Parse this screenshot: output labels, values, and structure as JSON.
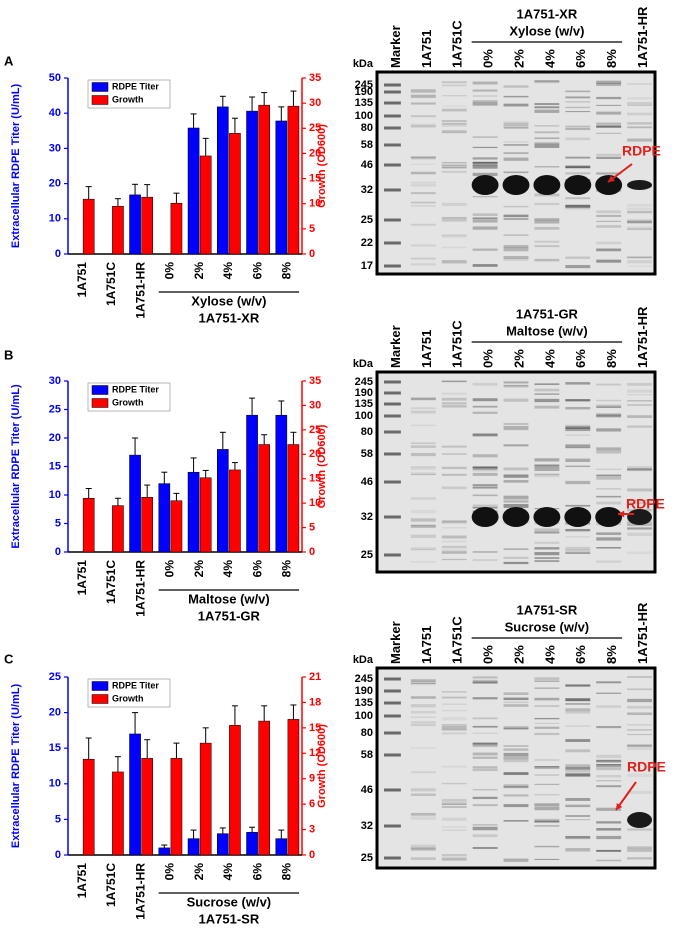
{
  "chart_data": [
    {
      "type": "bar",
      "panel": "A",
      "categories": [
        "1A751",
        "1A751C",
        "1A751-HR",
        "0%",
        "2%",
        "4%",
        "6%",
        "8%"
      ],
      "group_label": "Xylose (w/v)",
      "strain_label": "1A751-XR",
      "ylabel": "Extracellular RDPE Titer (U/mL)",
      "y2label": "Growth (OD600)",
      "ylim": [
        0,
        50
      ],
      "yticks": [
        0,
        10,
        20,
        30,
        40,
        50
      ],
      "y2lim": [
        0,
        35
      ],
      "y2ticks": [
        0,
        5,
        10,
        15,
        20,
        25,
        30,
        35
      ],
      "legend": "upper left",
      "series": [
        {
          "name": "RDPE Titer",
          "color": "#0000ff",
          "values": [
            null,
            null,
            16.8,
            null,
            35.8,
            41.8,
            40.6,
            37.8
          ],
          "errors": [
            null,
            null,
            3,
            null,
            4,
            3,
            4,
            4
          ]
        },
        {
          "name": "Growth",
          "color": "#ff0000",
          "axis": "y2",
          "values": [
            10.9,
            9.5,
            11.3,
            10.1,
            19.5,
            24,
            29.6,
            29.4
          ],
          "errors": [
            2.5,
            1.5,
            2.5,
            2,
            3.5,
            3,
            2.5,
            3
          ]
        }
      ]
    },
    {
      "type": "bar",
      "panel": "B",
      "categories": [
        "1A751",
        "1A751C",
        "1A751-HR",
        "0%",
        "2%",
        "4%",
        "6%",
        "8%"
      ],
      "group_label": "Maltose (w/v)",
      "strain_label": "1A751-GR",
      "ylabel": "Extracellular RDPE Titer (U/mL)",
      "y2label": "Growth (OD600)",
      "ylim": [
        0,
        30
      ],
      "yticks": [
        0,
        5,
        10,
        15,
        20,
        25,
        30
      ],
      "y2lim": [
        0,
        35
      ],
      "y2ticks": [
        0,
        5,
        10,
        15,
        20,
        25,
        30,
        35
      ],
      "legend": "upper left",
      "series": [
        {
          "name": "RDPE Titer",
          "color": "#0000ff",
          "values": [
            null,
            null,
            17,
            12,
            14,
            18,
            24,
            24
          ],
          "errors": [
            null,
            null,
            3,
            2,
            2.5,
            3,
            3,
            2.5
          ]
        },
        {
          "name": "Growth",
          "color": "#ff0000",
          "axis": "y2",
          "values": [
            11,
            9.5,
            11.2,
            10.5,
            15.2,
            16.8,
            22,
            22
          ],
          "errors": [
            2,
            1.5,
            2.5,
            1.5,
            1.5,
            1.5,
            2,
            2.5
          ]
        }
      ]
    },
    {
      "type": "bar",
      "panel": "C",
      "categories": [
        "1A751",
        "1A751C",
        "1A751-HR",
        "0%",
        "2%",
        "4%",
        "6%",
        "8%"
      ],
      "group_label": "Sucrose (w/v)",
      "strain_label": "1A751-SR",
      "ylabel": "Extracellular RDPE Titer (U/mL)",
      "y2label": "Growth (OD600)",
      "ylim": [
        0,
        25
      ],
      "yticks": [
        0,
        5,
        10,
        15,
        20,
        25
      ],
      "y2lim": [
        0,
        21
      ],
      "y2ticks": [
        0,
        3,
        6,
        9,
        12,
        15,
        18,
        21
      ],
      "legend": "upper left",
      "series": [
        {
          "name": "RDPE Titer",
          "color": "#0000ff",
          "values": [
            null,
            null,
            17,
            1,
            2.3,
            3,
            3.2,
            2.3
          ],
          "errors": [
            null,
            null,
            3,
            0.4,
            1.2,
            0.8,
            0.7,
            1.2
          ]
        },
        {
          "name": "Growth",
          "color": "#ff0000",
          "axis": "y2",
          "values": [
            11.3,
            9.8,
            11.4,
            11.4,
            13.2,
            15.3,
            15.8,
            16
          ],
          "errors": [
            2.5,
            1.8,
            2.2,
            1.8,
            1.8,
            2.3,
            1.8,
            1.7
          ]
        }
      ]
    }
  ],
  "gels": [
    {
      "kda_label": "kDa",
      "markers": [
        "245",
        "190",
        "135",
        "100",
        "80",
        "58",
        "46",
        "32",
        "25",
        "22",
        "17"
      ],
      "lanes": [
        "Marker",
        "1A751",
        "1A751C",
        "0%",
        "2%",
        "4%",
        "6%",
        "8%",
        "1A751-HR"
      ],
      "strain_label": "1A751-XR",
      "group_label": "Xylose (w/v)",
      "band_label": "RDPE"
    },
    {
      "kda_label": "kDa",
      "markers": [
        "245",
        "190",
        "135",
        "100",
        "80",
        "58",
        "46",
        "32",
        "25"
      ],
      "lanes": [
        "Marker",
        "1A751",
        "1A751C",
        "0%",
        "2%",
        "4%",
        "6%",
        "8%",
        "1A751-HR"
      ],
      "strain_label": "1A751-GR",
      "group_label": "Maltose (w/v)",
      "band_label": "RDPE"
    },
    {
      "kda_label": "kDa",
      "markers": [
        "245",
        "190",
        "135",
        "100",
        "80",
        "58",
        "46",
        "32",
        "25"
      ],
      "lanes": [
        "Marker",
        "1A751",
        "1A751C",
        "0%",
        "2%",
        "4%",
        "6%",
        "8%",
        "1A751-HR"
      ],
      "strain_label": "1A751-SR",
      "group_label": "Sucrose (w/v)",
      "band_label": "RDPE"
    }
  ]
}
